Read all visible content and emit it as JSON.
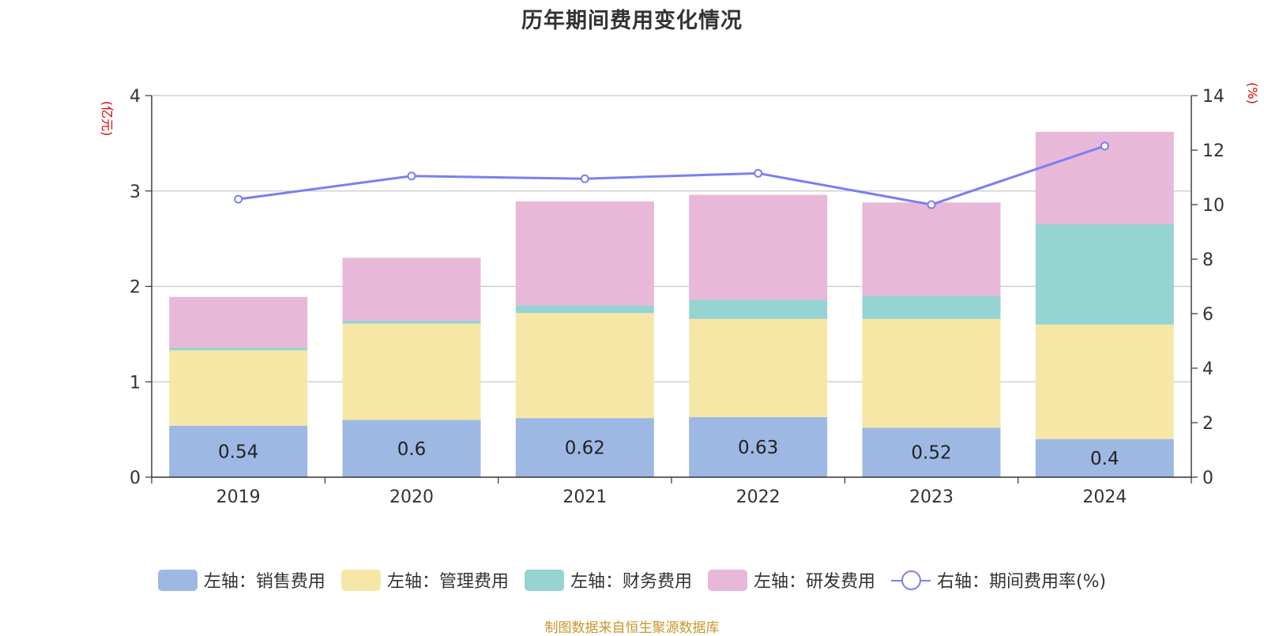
{
  "chart_data": {
    "type": "bar",
    "title": "历年期间费用变化情况",
    "categories": [
      "2019",
      "2020",
      "2021",
      "2022",
      "2023",
      "2024"
    ],
    "series": [
      {
        "name": "左轴：销售费用",
        "axis": "left",
        "type": "bar",
        "color": "#9db8e2",
        "values": [
          0.54,
          0.6,
          0.62,
          0.63,
          0.52,
          0.4
        ]
      },
      {
        "name": "左轴：管理费用",
        "axis": "left",
        "type": "bar",
        "color": "#f7e7a7",
        "values": [
          0.79,
          1.01,
          1.1,
          1.03,
          1.14,
          1.2
        ]
      },
      {
        "name": "左轴：财务费用",
        "axis": "left",
        "type": "bar",
        "color": "#96d3d3",
        "values": [
          0.03,
          0.03,
          0.08,
          0.2,
          0.24,
          1.05
        ]
      },
      {
        "name": "左轴：研发费用",
        "axis": "left",
        "type": "bar",
        "color": "#e8b8d8",
        "values": [
          0.53,
          0.66,
          1.09,
          1.1,
          0.98,
          0.97
        ]
      },
      {
        "name": "右轴：期间费用率(%)",
        "axis": "right",
        "type": "line",
        "color": "#7b7ff0",
        "values": [
          10.2,
          11.05,
          10.95,
          11.15,
          10.0,
          12.15
        ]
      }
    ],
    "data_labels": [
      "0.54",
      "0.6",
      "0.62",
      "0.63",
      "0.52",
      "0.4"
    ],
    "left_axis": {
      "unit": "(亿元)",
      "ylim": [
        0,
        4
      ],
      "ticks": [
        "0",
        "1",
        "2",
        "3",
        "4"
      ]
    },
    "right_axis": {
      "unit": "(%)",
      "ylim": [
        0,
        14
      ],
      "ticks": [
        "0",
        "2",
        "4",
        "6",
        "8",
        "10",
        "12",
        "14"
      ]
    },
    "grid": true,
    "legend_position": "bottom",
    "source": "制图数据来自恒生聚源数据库"
  }
}
